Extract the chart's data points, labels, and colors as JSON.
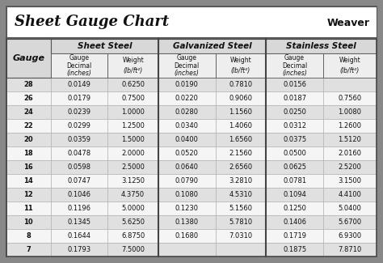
{
  "title": "Sheet Gauge Chart",
  "bg_outer": "#888888",
  "bg_inner": "#f8f8f8",
  "bg_title": "#ffffff",
  "bg_header1": "#d0d0d0",
  "bg_header2": "#e8e8e8",
  "bg_row_even": "#e0e0e0",
  "bg_row_odd": "#f5f5f5",
  "gauges": [
    28,
    26,
    24,
    22,
    20,
    18,
    16,
    14,
    12,
    11,
    10,
    8,
    7
  ],
  "sheet_steel_dec": [
    "0.0149",
    "0.0179",
    "0.0239",
    "0.0299",
    "0.0359",
    "0.0478",
    "0.0598",
    "0.0747",
    "0.1046",
    "0.1196",
    "0.1345",
    "0.1644",
    "0.1793"
  ],
  "sheet_steel_wt": [
    "0.6250",
    "0.7500",
    "1.0000",
    "1.2500",
    "1.5000",
    "2.0000",
    "2.5000",
    "3.1250",
    "4.3750",
    "5.0000",
    "5.6250",
    "6.8750",
    "7.5000"
  ],
  "galv_dec": [
    "0.0190",
    "0.0220",
    "0.0280",
    "0.0340",
    "0.0400",
    "0.0520",
    "0.0640",
    "0.0790",
    "0.1080",
    "0.1230",
    "0.1380",
    "0.1680",
    ""
  ],
  "galv_wt": [
    "0.7810",
    "0.9060",
    "1.1560",
    "1.4060",
    "1.6560",
    "2.1560",
    "2.6560",
    "3.2810",
    "4.5310",
    "5.1560",
    "5.7810",
    "7.0310",
    ""
  ],
  "stn_dec": [
    "0.0156",
    "0.0187",
    "0.0250",
    "0.0312",
    "0.0375",
    "0.0500",
    "0.0625",
    "0.0781",
    "0.1094",
    "0.1250",
    "0.1406",
    "0.1719",
    "0.1875"
  ],
  "stn_wt": [
    "",
    "0.7560",
    "1.0080",
    "1.2600",
    "1.5120",
    "2.0160",
    "2.5200",
    "3.1500",
    "4.4100",
    "5.0400",
    "5.6700",
    "6.9300",
    "7.8710"
  ]
}
